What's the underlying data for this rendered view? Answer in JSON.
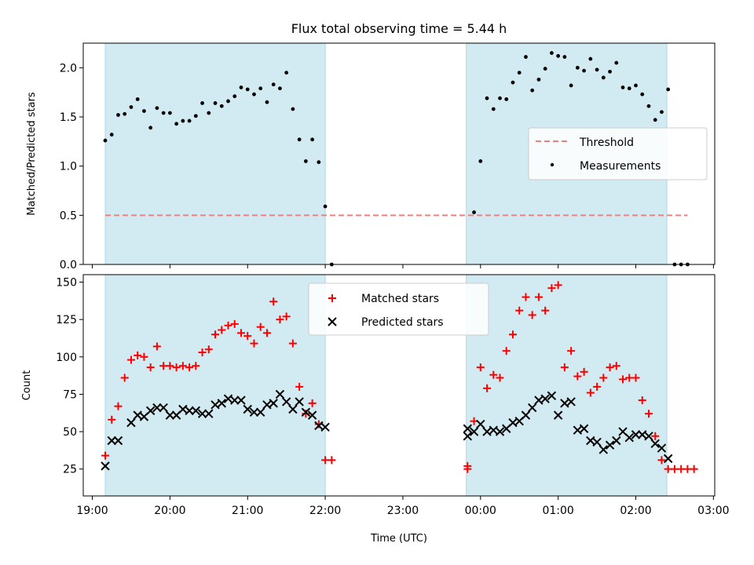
{
  "chart_data": [
    {
      "type": "scatter",
      "title": "Flux total observing time = 5.44 h",
      "ylabel": "Matched/Predicted stars",
      "ylim": [
        0,
        2.25
      ],
      "yticks": [
        0.0,
        0.5,
        1.0,
        1.5,
        2.0
      ],
      "ytick_labels": [
        "0.0",
        "0.5",
        "1.0",
        "1.5",
        "2.0"
      ],
      "shaded_color": "#add8e6",
      "threshold": {
        "name": "Threshold",
        "value": 0.5,
        "x_range": [
          "19:10",
          "02:40"
        ],
        "color": "#f08080"
      },
      "legend_position": "center-right",
      "legend": [
        {
          "label": "Threshold",
          "marker": "dash"
        },
        {
          "label": "Measurements",
          "marker": "dot"
        }
      ],
      "series": [
        {
          "name": "Measurements",
          "color": "#000000",
          "x": [
            "19:10",
            "19:15",
            "19:20",
            "19:25",
            "19:30",
            "19:35",
            "19:40",
            "19:45",
            "19:50",
            "19:55",
            "20:00",
            "20:05",
            "20:10",
            "20:15",
            "20:20",
            "20:25",
            "20:30",
            "20:35",
            "20:40",
            "20:45",
            "20:50",
            "20:55",
            "21:00",
            "21:05",
            "21:10",
            "21:15",
            "21:20",
            "21:25",
            "21:30",
            "21:35",
            "21:40",
            "21:45",
            "21:50",
            "21:55",
            "22:00",
            "22:05",
            "23:55",
            "00:00",
            "00:05",
            "00:10",
            "00:15",
            "00:20",
            "00:25",
            "00:30",
            "00:35",
            "00:40",
            "00:45",
            "00:50",
            "00:55",
            "01:00",
            "01:05",
            "01:10",
            "01:15",
            "01:20",
            "01:25",
            "01:30",
            "01:35",
            "01:40",
            "01:45",
            "01:50",
            "01:55",
            "02:00",
            "02:05",
            "02:10",
            "02:15",
            "02:20",
            "02:25",
            "02:30",
            "02:35",
            "02:40"
          ],
          "y": [
            1.26,
            1.32,
            1.52,
            1.53,
            1.6,
            1.68,
            1.56,
            1.39,
            1.59,
            1.54,
            1.54,
            1.43,
            1.46,
            1.46,
            1.51,
            1.64,
            1.54,
            1.64,
            1.61,
            1.66,
            1.71,
            1.8,
            1.78,
            1.73,
            1.79,
            1.65,
            1.83,
            1.79,
            1.95,
            1.58,
            1.27,
            1.05,
            1.27,
            1.04,
            0.59,
            0.0,
            0.53,
            1.05,
            1.69,
            1.58,
            1.69,
            1.68,
            1.85,
            1.95,
            2.11,
            1.77,
            1.88,
            1.99,
            2.15,
            2.12,
            2.11,
            1.82,
            2.0,
            1.97,
            2.09,
            1.98,
            1.9,
            1.96,
            2.05,
            1.8,
            1.79,
            1.82,
            1.73,
            1.61,
            1.47,
            1.55,
            1.78,
            0.0,
            0.0,
            0.0
          ]
        }
      ]
    },
    {
      "type": "scatter",
      "xlabel": "Time (UTC)",
      "ylabel": "Count",
      "ylim": [
        7,
        155
      ],
      "yticks": [
        25,
        50,
        75,
        100,
        125,
        150
      ],
      "ytick_labels": [
        "25",
        "50",
        "75",
        "100",
        "125",
        "150"
      ],
      "x_ticks": [
        "19:00",
        "20:00",
        "21:00",
        "22:00",
        "23:00",
        "00:00",
        "01:00",
        "02:00",
        "03:00"
      ],
      "x_range": [
        "18:53",
        "03:01"
      ],
      "shaded_ranges": [
        [
          "19:10",
          "22:00"
        ],
        [
          "23:49",
          "02:24"
        ]
      ],
      "shaded_color": "#add8e6",
      "legend_position": "upper-center",
      "legend": [
        {
          "label": "Matched stars",
          "marker": "plus"
        },
        {
          "label": "Predicted stars",
          "marker": "x"
        }
      ],
      "series": [
        {
          "name": "Matched stars",
          "color": "#ff0000",
          "marker": "plus",
          "x": [
            "19:10",
            "19:15",
            "19:20",
            "19:25",
            "19:30",
            "19:35",
            "19:40",
            "19:45",
            "19:50",
            "19:55",
            "20:00",
            "20:05",
            "20:10",
            "20:15",
            "20:20",
            "20:25",
            "20:30",
            "20:35",
            "20:40",
            "20:45",
            "20:50",
            "20:55",
            "21:00",
            "21:05",
            "21:10",
            "21:15",
            "21:20",
            "21:25",
            "21:30",
            "21:35",
            "21:40",
            "21:45",
            "21:50",
            "21:55",
            "22:00",
            "22:05",
            "23:50",
            "23:50",
            "23:55",
            "00:00",
            "00:05",
            "00:10",
            "00:15",
            "00:20",
            "00:25",
            "00:30",
            "00:35",
            "00:40",
            "00:45",
            "00:50",
            "00:55",
            "01:00",
            "01:05",
            "01:10",
            "01:15",
            "01:20",
            "01:25",
            "01:30",
            "01:35",
            "01:40",
            "01:45",
            "01:50",
            "01:55",
            "02:00",
            "02:05",
            "02:10",
            "02:15",
            "02:20",
            "02:25",
            "02:30",
            "02:35",
            "02:40",
            "02:45"
          ],
          "y": [
            34,
            58,
            67,
            86,
            98,
            101,
            100,
            93,
            107,
            94,
            94,
            93,
            94,
            93,
            94,
            103,
            105,
            115,
            118,
            121,
            122,
            116,
            114,
            109,
            120,
            116,
            137,
            125,
            127,
            109,
            80,
            62,
            69,
            55,
            31,
            31,
            25,
            27,
            57,
            93,
            79,
            88,
            86,
            104,
            115,
            131,
            140,
            128,
            140,
            131,
            146,
            148,
            93,
            104,
            87,
            90,
            76,
            80,
            86,
            93,
            94,
            85,
            86,
            86,
            71,
            62,
            47,
            31,
            25,
            25,
            25,
            25,
            25
          ]
        },
        {
          "name": "Predicted stars",
          "color": "#000000",
          "marker": "x",
          "x": [
            "19:10",
            "19:15",
            "19:20",
            "19:30",
            "19:35",
            "19:40",
            "19:45",
            "19:50",
            "19:55",
            "20:00",
            "20:05",
            "20:10",
            "20:15",
            "20:20",
            "20:25",
            "20:30",
            "20:35",
            "20:40",
            "20:45",
            "20:50",
            "20:55",
            "21:00",
            "21:05",
            "21:10",
            "21:15",
            "21:20",
            "21:25",
            "21:30",
            "21:35",
            "21:40",
            "21:45",
            "21:50",
            "21:55",
            "22:00",
            "23:50",
            "23:50",
            "23:55",
            "00:00",
            "00:05",
            "00:10",
            "00:15",
            "00:20",
            "00:25",
            "00:30",
            "00:35",
            "00:40",
            "00:45",
            "00:50",
            "00:55",
            "01:00",
            "01:05",
            "01:10",
            "01:15",
            "01:20",
            "01:25",
            "01:30",
            "01:35",
            "01:40",
            "01:45",
            "01:50",
            "01:55",
            "02:00",
            "02:05",
            "02:10",
            "02:15",
            "02:20",
            "02:25"
          ],
          "y": [
            27,
            44,
            44,
            56,
            61,
            60,
            64,
            66,
            66,
            61,
            61,
            65,
            64,
            64,
            62,
            62,
            68,
            69,
            72,
            71,
            71,
            65,
            63,
            63,
            68,
            69,
            75,
            70,
            65,
            70,
            63,
            61,
            54,
            53,
            47,
            52,
            50,
            55,
            50,
            51,
            50,
            52,
            56,
            57,
            61,
            66,
            71,
            72,
            74,
            61,
            69,
            70,
            51,
            52,
            44,
            43,
            38,
            41,
            44,
            50,
            46,
            48,
            48,
            47,
            42,
            39,
            32
          ]
        }
      ]
    }
  ]
}
